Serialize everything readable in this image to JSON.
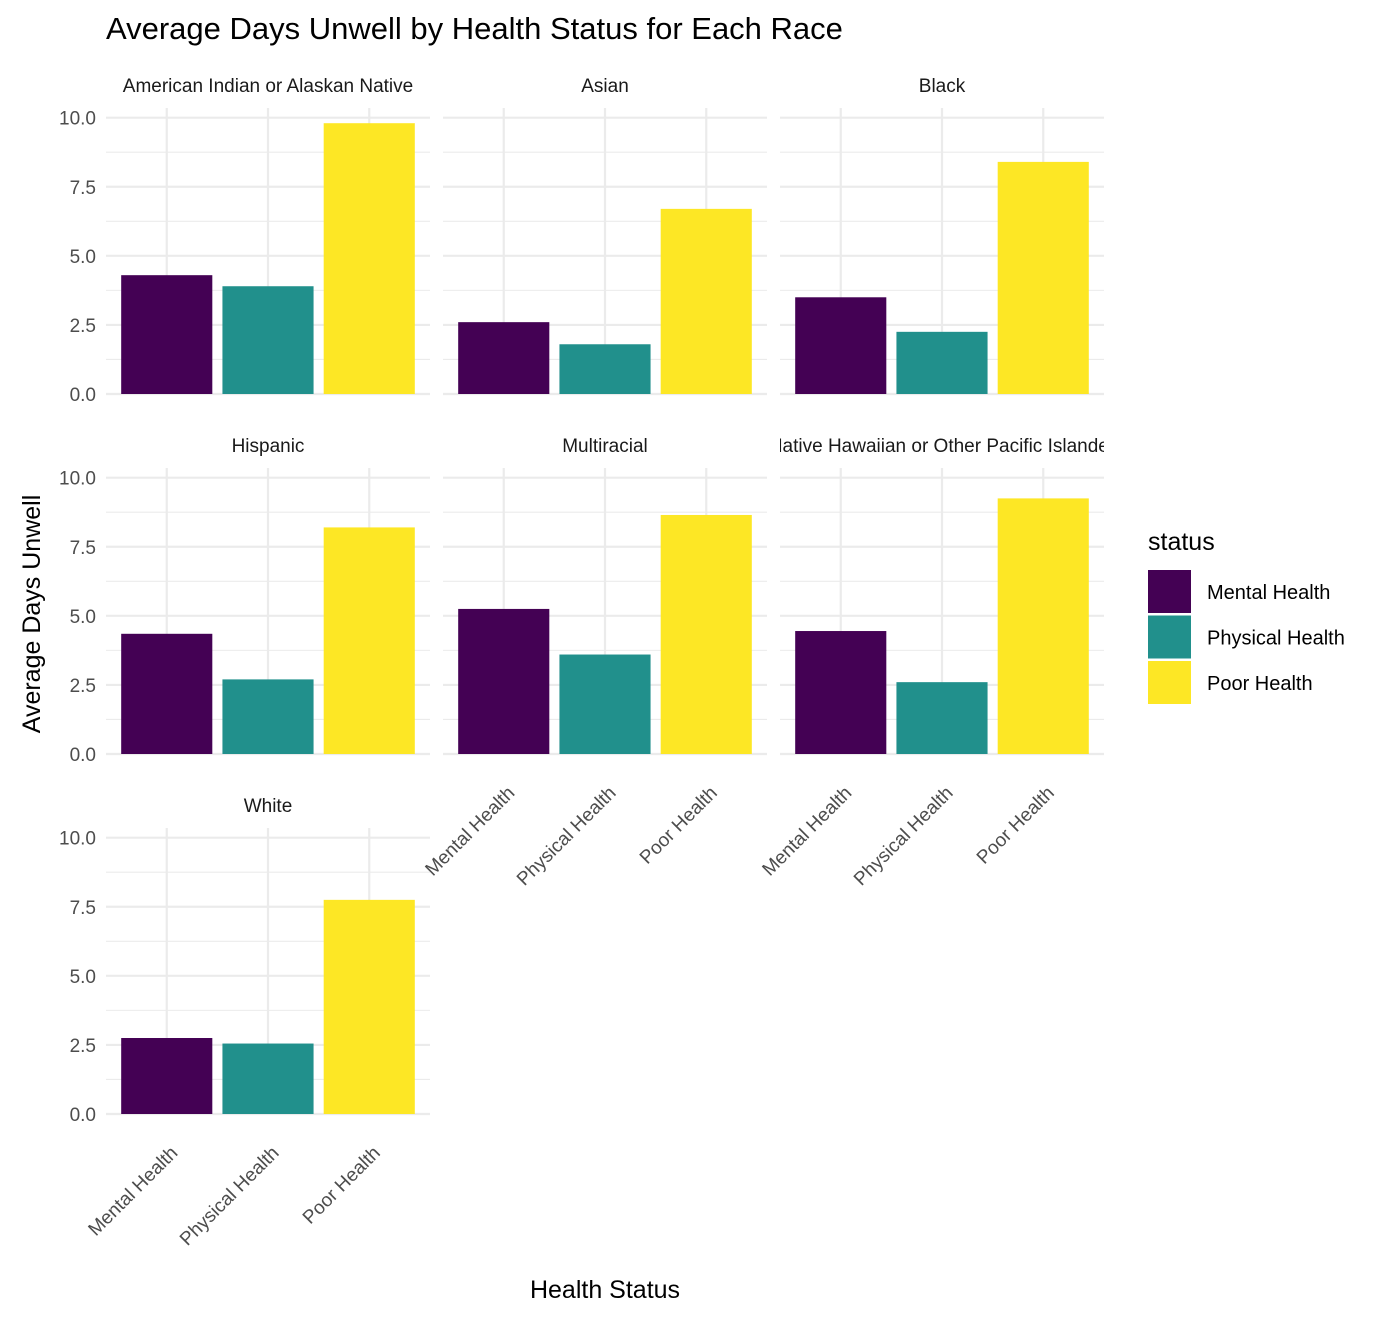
{
  "chart_data": {
    "type": "bar",
    "title": "Average Days Unwell by Health Status for Each Race",
    "xlabel": "Health Status",
    "ylabel": "Average Days Unwell",
    "ylim": [
      0,
      10.35
    ],
    "yticks": [
      "0.0",
      "2.5",
      "5.0",
      "7.5",
      "10.0"
    ],
    "ytick_values": [
      0,
      2.5,
      5,
      7.5,
      10
    ],
    "categories": [
      "Mental Health",
      "Physical Health",
      "Poor Health"
    ],
    "grid": true,
    "legend": {
      "title": "status",
      "position": "right",
      "entries": [
        {
          "label": "Mental Health",
          "color": "#440154"
        },
        {
          "label": "Physical Health",
          "color": "#21908C"
        },
        {
          "label": "Poor Health",
          "color": "#FDE725"
        }
      ]
    },
    "facets": [
      {
        "label": "American Indian or Alaskan Native",
        "values": [
          4.3,
          3.9,
          9.8
        ]
      },
      {
        "label": "Asian",
        "values": [
          2.6,
          1.8,
          6.7
        ]
      },
      {
        "label": "Black",
        "values": [
          3.5,
          2.25,
          8.4
        ]
      },
      {
        "label": "Hispanic",
        "values": [
          4.35,
          2.7,
          8.2
        ]
      },
      {
        "label": "Multiracial",
        "values": [
          5.25,
          3.6,
          8.65
        ]
      },
      {
        "label": "Native Hawaiian or Other Pacific Islander",
        "values": [
          4.45,
          2.6,
          9.25
        ]
      },
      {
        "label": "White",
        "values": [
          2.75,
          2.55,
          7.75
        ]
      }
    ]
  }
}
